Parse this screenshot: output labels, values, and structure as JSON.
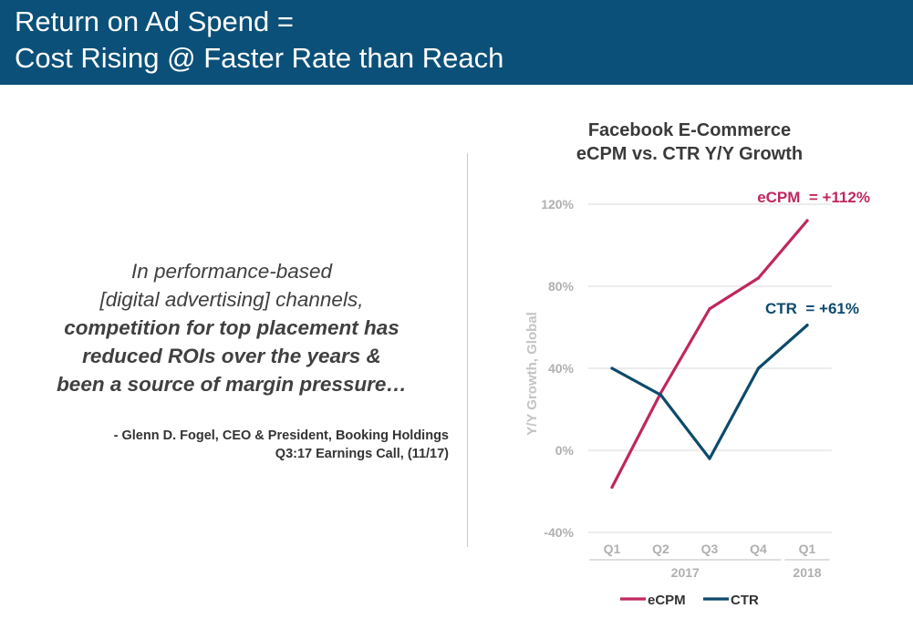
{
  "header": {
    "title_line1": "Return on Ad Spend =",
    "title_line2": "Cost Rising @ Faster Rate than Reach"
  },
  "quote": {
    "line1": "In performance-based",
    "line2": "[digital advertising] channels,",
    "line3": "competition for top placement has",
    "line4": "reduced ROIs over the years &",
    "line5": "been a source of margin pressure…"
  },
  "attribution": {
    "line1": "- Glenn D. Fogel, CEO & President, Booking Holdings",
    "line2": "Q3:17 Earnings Call, (11/17)"
  },
  "colors": {
    "header_bg": "#0b5079",
    "ecpm": "#c0275e",
    "ctr": "#0d4a6b",
    "grid": "#d9d9d9",
    "axis_text": "#b0b0b0"
  },
  "chart_data": {
    "type": "line",
    "title_line1": "Facebook E-Commerce",
    "title_line2": "eCPM vs. CTR Y/Y Growth",
    "ylabel": "Y/Y Growth, Global",
    "xlabel": "",
    "categories": [
      "Q1",
      "Q2",
      "Q3",
      "Q4",
      "Q1"
    ],
    "year_groups": [
      {
        "label": "2017",
        "count": 4
      },
      {
        "label": "2018",
        "count": 1
      }
    ],
    "yticks": [
      "-40%",
      "0%",
      "40%",
      "80%",
      "120%"
    ],
    "ylim": [
      -40,
      120
    ],
    "grid": true,
    "legend_position": "bottom",
    "series": [
      {
        "name": "eCPM",
        "color": "#c0275e",
        "values": [
          -18,
          28,
          69,
          84,
          112
        ],
        "end_label": "eCPM  = +112%"
      },
      {
        "name": "CTR",
        "color": "#0d4a6b",
        "values": [
          40,
          27,
          -4,
          40,
          61
        ],
        "end_label": "CTR  = +61%"
      }
    ]
  }
}
